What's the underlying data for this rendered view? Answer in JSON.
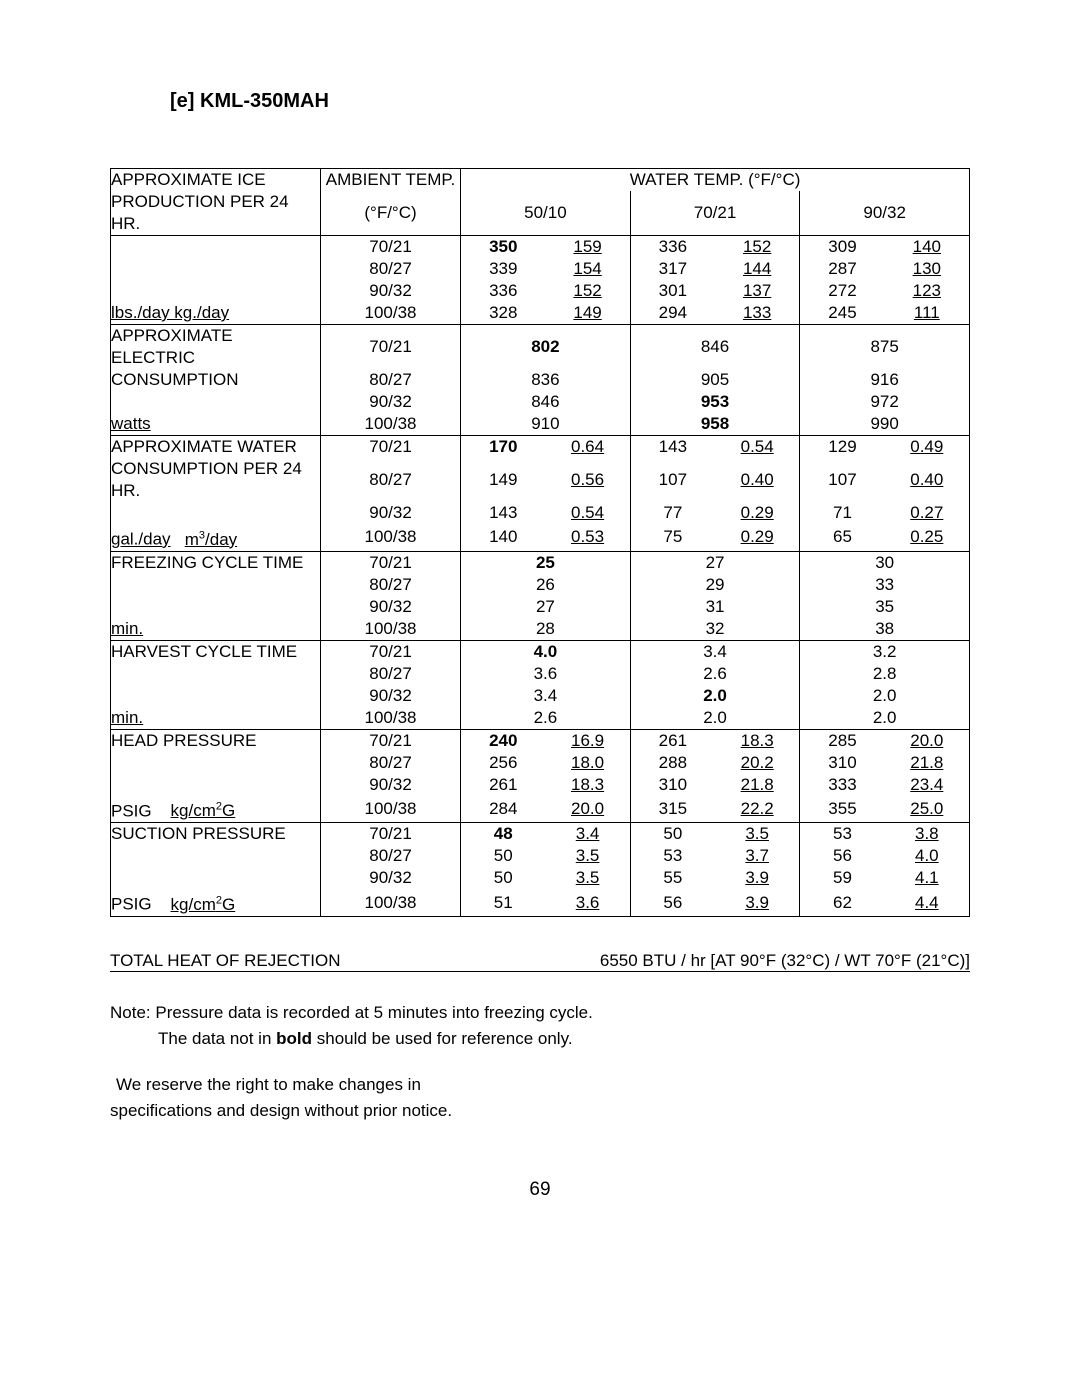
{
  "title": "[e]  KML-350MAH",
  "table": {
    "header": {
      "ambRowLabel1": "APPROXIMATE ICE",
      "ambRowLabel2": "PRODUCTION PER 24 HR.",
      "ambientHdr": "AMBIENT TEMP.",
      "ambientUnit": "(°F/°C)",
      "waterHdr": "WATER TEMP. (°F/°C)",
      "sub": [
        "50/10",
        "70/21",
        "90/32"
      ]
    },
    "sections": [
      {
        "label1": "APPROXIMATE ICE",
        "label2": "PRODUCTION PER 24 HR.",
        "unit": "lbs./day   kg./day",
        "unitUnderline": true,
        "boldFirst": true,
        "pair": true,
        "rows": [
          {
            "amb": "70/21",
            "c": [
              [
                "350",
                "159"
              ],
              [
                "336",
                "152"
              ],
              [
                "309",
                "140"
              ]
            ]
          },
          {
            "amb": "80/27",
            "c": [
              [
                "339",
                "154"
              ],
              [
                "317",
                "144"
              ],
              [
                "287",
                "130"
              ]
            ]
          },
          {
            "amb": "90/32",
            "c": [
              [
                "336",
                "152"
              ],
              [
                "301",
                "137"
              ],
              [
                "272",
                "123"
              ]
            ]
          },
          {
            "amb": "100/38",
            "c": [
              [
                "328",
                "149"
              ],
              [
                "294",
                "133"
              ],
              [
                "245",
                "111"
              ]
            ]
          }
        ]
      },
      {
        "label1": "APPROXIMATE ELECTRIC",
        "label2": "CONSUMPTION",
        "unit": "watts",
        "unitUnderline": true,
        "pair": false,
        "boldSingles": [
          "802",
          "846",
          "953",
          "958"
        ],
        "rows": [
          {
            "amb": "70/21",
            "s": [
              "802",
              "846",
              "875"
            ]
          },
          {
            "amb": "80/27",
            "s": [
              "836",
              "905",
              "916"
            ]
          },
          {
            "amb": "90/32",
            "s": [
              "846",
              "953",
              "972"
            ]
          },
          {
            "amb": "100/38",
            "s": [
              "910",
              "958",
              "990"
            ]
          }
        ]
      },
      {
        "label1": "APPROXIMATE WATER",
        "label2": "CONSUMPTION PER 24 HR.",
        "unit": "gal./day   m³/day",
        "unitUnderline": true,
        "unitHasSuper": true,
        "boldFirst": true,
        "pair": true,
        "rows": [
          {
            "amb": "70/21",
            "c": [
              [
                "170",
                "0.64"
              ],
              [
                "143",
                "0.54"
              ],
              [
                "129",
                "0.49"
              ]
            ]
          },
          {
            "amb": "80/27",
            "c": [
              [
                "149",
                "0.56"
              ],
              [
                "107",
                "0.40"
              ],
              [
                "107",
                "0.40"
              ]
            ]
          },
          {
            "amb": "90/32",
            "c": [
              [
                "143",
                "0.54"
              ],
              [
                "77",
                "0.29"
              ],
              [
                "71",
                "0.27"
              ]
            ]
          },
          {
            "amb": "100/38",
            "c": [
              [
                "140",
                "0.53"
              ],
              [
                "75",
                "0.29"
              ],
              [
                "65",
                "0.25"
              ]
            ]
          }
        ]
      },
      {
        "label1": "FREEZING CYCLE TIME",
        "label2": "",
        "unit": "min.",
        "unitUnderline": true,
        "pair": false,
        "boldSingles": [
          "25"
        ],
        "rows": [
          {
            "amb": "70/21",
            "s": [
              "25",
              "27",
              "30"
            ]
          },
          {
            "amb": "80/27",
            "s": [
              "26",
              "29",
              "33"
            ]
          },
          {
            "amb": "90/32",
            "s": [
              "27",
              "31",
              "35"
            ]
          },
          {
            "amb": "100/38",
            "s": [
              "28",
              "32",
              "38"
            ]
          }
        ]
      },
      {
        "label1": "HARVEST CYCLE TIME",
        "label2": "",
        "unit": "min.",
        "unitUnderline": true,
        "pair": false,
        "boldSingles": [
          "4.0",
          "2.0"
        ],
        "rows": [
          {
            "amb": "70/21",
            "s": [
              "4.0",
              "3.4",
              "3.2"
            ]
          },
          {
            "amb": "80/27",
            "s": [
              "3.6",
              "2.6",
              "2.8"
            ]
          },
          {
            "amb": "90/32",
            "s": [
              "3.4",
              "2.0",
              "2.0"
            ]
          },
          {
            "amb": "100/38",
            "s": [
              "2.6",
              "2.0",
              "2.0"
            ]
          }
        ]
      },
      {
        "label1": "HEAD PRESSURE",
        "label2": "",
        "unit": "PSIG     kg/cm²G",
        "unitUnderline": true,
        "unitHasSuper": true,
        "boldFirst": true,
        "pair": true,
        "rows": [
          {
            "amb": "70/21",
            "c": [
              [
                "240",
                "16.9"
              ],
              [
                "261",
                "18.3"
              ],
              [
                "285",
                "20.0"
              ]
            ]
          },
          {
            "amb": "80/27",
            "c": [
              [
                "256",
                "18.0"
              ],
              [
                "288",
                "20.2"
              ],
              [
                "310",
                "21.8"
              ]
            ]
          },
          {
            "amb": "90/32",
            "c": [
              [
                "261",
                "18.3"
              ],
              [
                "310",
                "21.8"
              ],
              [
                "333",
                "23.4"
              ]
            ]
          },
          {
            "amb": "100/38",
            "c": [
              [
                "284",
                "20.0"
              ],
              [
                "315",
                "22.2"
              ],
              [
                "355",
                "25.0"
              ]
            ]
          }
        ]
      },
      {
        "label1": "SUCTION PRESSURE",
        "label2": "",
        "unit": "PSIG     kg/cm²G",
        "unitUnderline": true,
        "unitHasSuper": true,
        "boldFirst": true,
        "pair": true,
        "rows": [
          {
            "amb": "70/21",
            "c": [
              [
                "48",
                "3.4"
              ],
              [
                "50",
                "3.5"
              ],
              [
                "53",
                "3.8"
              ]
            ]
          },
          {
            "amb": "80/27",
            "c": [
              [
                "50",
                "3.5"
              ],
              [
                "53",
                "3.7"
              ],
              [
                "56",
                "4.0"
              ]
            ]
          },
          {
            "amb": "90/32",
            "c": [
              [
                "50",
                "3.5"
              ],
              [
                "55",
                "3.9"
              ],
              [
                "59",
                "4.1"
              ]
            ]
          },
          {
            "amb": "100/38",
            "c": [
              [
                "51",
                "3.6"
              ],
              [
                "56",
                "3.9"
              ],
              [
                "62",
                "4.4"
              ]
            ]
          }
        ]
      }
    ]
  },
  "heatRejection": {
    "label": "TOTAL HEAT OF REJECTION",
    "value": "6550 BTU / hr  [AT 90°F (32°C) / WT 70°F (21°C)]"
  },
  "notes": {
    "l1": "Note:  Pressure data is recorded at 5 minutes into freezing cycle.",
    "l2a": "The data not in ",
    "l2b": "bold",
    "l2c": " should be used for reference only.",
    "l3": "We reserve the right to make changes in",
    "l4": "specifications and design without prior notice."
  },
  "pageNumber": "69"
}
